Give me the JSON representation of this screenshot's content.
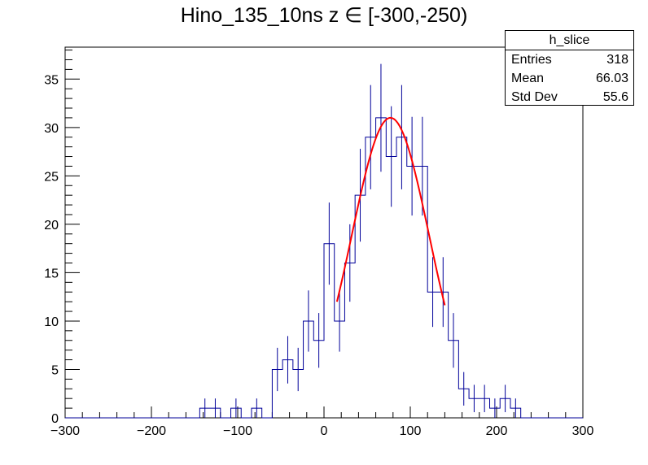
{
  "chart_data": {
    "type": "histogram",
    "title": "Hino_135_10ns z  ∈ [-300,-250)",
    "xlim": [
      -300,
      300
    ],
    "ylim": [
      0,
      38.3
    ],
    "bin_width": 12,
    "bin_low_edges": [
      -144,
      -132,
      -108,
      -84,
      -60,
      -48,
      -36,
      -24,
      -12,
      0,
      12,
      24,
      36,
      48,
      60,
      72,
      84,
      96,
      108,
      120,
      132,
      144,
      156,
      168,
      180,
      192,
      204,
      216
    ],
    "bin_counts": [
      1,
      1,
      1,
      1,
      5,
      6,
      5,
      10,
      8,
      18,
      10,
      16,
      23,
      29,
      31,
      27,
      29,
      26,
      26,
      13,
      13,
      8,
      3,
      2,
      2,
      1,
      2,
      1
    ],
    "x_ticks": [
      -300,
      -200,
      -100,
      0,
      100,
      200,
      300
    ],
    "x_tick_labels": [
      "−300",
      "−200",
      "−100",
      "0",
      "100",
      "200",
      "300"
    ],
    "y_ticks": [
      0,
      5,
      10,
      15,
      20,
      25,
      30,
      35
    ],
    "y_tick_labels": [
      "0",
      "5",
      "10",
      "15",
      "20",
      "25",
      "30",
      "35"
    ],
    "fit": {
      "type": "gaussian",
      "range": [
        15,
        140
      ],
      "amplitude": 31.0,
      "mean": 77,
      "sigma": 45,
      "color": "#ff0000"
    },
    "histogram_color": "#000099",
    "stats_box": {
      "name": "h_slice",
      "rows": [
        {
          "label": "Entries",
          "value": "318"
        },
        {
          "label": "Mean",
          "value": "66.03"
        },
        {
          "label": "Std Dev",
          "value": "55.6"
        }
      ]
    }
  }
}
